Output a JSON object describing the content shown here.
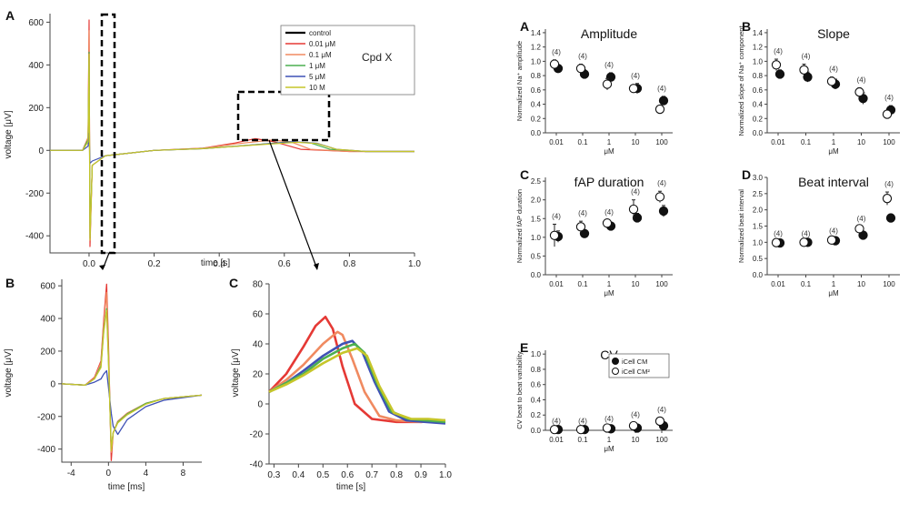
{
  "chart_data": [
    {
      "id": "traces-main",
      "panel": "A",
      "type": "line",
      "xlabel": "time [s]",
      "ylabel": "voltage [μV]",
      "xlim": [
        -0.12,
        1.0
      ],
      "ylim": [
        -480,
        640
      ],
      "xticks": [
        "0.0",
        "0.2",
        "0.4",
        "0.6",
        "0.8",
        "1.0"
      ],
      "yticks": [
        "600",
        "400",
        "200",
        "0",
        "-200",
        "-400"
      ],
      "legend": {
        "placement": "top-right",
        "annotation": "Cpd X",
        "entries": [
          {
            "name": "control",
            "color": "#000000"
          },
          {
            "name": "0.01 μM",
            "color": "#e53935"
          },
          {
            "name": "0.1 μM",
            "color": "#f08a60"
          },
          {
            "name": "1 μM",
            "color": "#4caf50"
          },
          {
            "name": "5 μM",
            "color": "#3f51b5"
          },
          {
            "name": "10 M",
            "color": "#c6c62a"
          }
        ]
      },
      "series": [
        {
          "name": "0.01 μM",
          "color": "#e53935",
          "x": [
            -0.12,
            -0.02,
            -0.003,
            0.0,
            0.003,
            0.01,
            0.05,
            0.2,
            0.35,
            0.45,
            0.51,
            0.57,
            0.65,
            0.8,
            1.0
          ],
          "y": [
            0,
            0,
            60,
            610,
            -450,
            -70,
            -25,
            0,
            10,
            35,
            55,
            40,
            5,
            -5,
            -5
          ]
        },
        {
          "name": "0.1 μM",
          "color": "#f08a60",
          "x": [
            -0.12,
            -0.02,
            -0.003,
            0.0,
            0.003,
            0.01,
            0.05,
            0.2,
            0.35,
            0.45,
            0.56,
            0.62,
            0.68,
            0.8,
            1.0
          ],
          "y": [
            0,
            0,
            60,
            560,
            -420,
            -70,
            -25,
            0,
            10,
            30,
            48,
            40,
            5,
            -5,
            -5
          ]
        },
        {
          "name": "1 μM",
          "color": "#4caf50",
          "x": [
            -0.12,
            -0.02,
            -0.003,
            0.0,
            0.003,
            0.01,
            0.05,
            0.2,
            0.35,
            0.5,
            0.62,
            0.68,
            0.74,
            0.85,
            1.0
          ],
          "y": [
            0,
            0,
            50,
            460,
            -410,
            -70,
            -25,
            0,
            8,
            25,
            40,
            35,
            5,
            -5,
            -5
          ]
        },
        {
          "name": "5 μM",
          "color": "#3f51b5",
          "x": [
            -0.12,
            -0.02,
            -0.003,
            0.0,
            0.003,
            0.01,
            0.05,
            0.2,
            0.35,
            0.5,
            0.63,
            0.7,
            0.76,
            0.85,
            1.0
          ],
          "y": [
            0,
            0,
            20,
            80,
            -60,
            -50,
            -25,
            0,
            8,
            25,
            40,
            33,
            5,
            -5,
            -5
          ]
        },
        {
          "name": "10 M",
          "color": "#c6c62a",
          "x": [
            -0.12,
            -0.02,
            -0.003,
            0.0,
            0.003,
            0.01,
            0.05,
            0.2,
            0.35,
            0.5,
            0.64,
            0.7,
            0.76,
            0.85,
            1.0
          ],
          "y": [
            0,
            0,
            40,
            450,
            -420,
            -70,
            -25,
            0,
            8,
            24,
            38,
            32,
            5,
            -5,
            -5
          ]
        }
      ]
    },
    {
      "id": "traces-zoom-spike",
      "panel": "B",
      "type": "line",
      "xlabel": "time [ms]",
      "ylabel": "voltage [μV]",
      "xlim": [
        -5,
        10
      ],
      "ylim": [
        -480,
        640
      ],
      "xticks": [
        "-4",
        "0",
        "4",
        "8"
      ],
      "yticks": [
        "600",
        "400",
        "200",
        "0",
        "-200",
        "-400"
      ],
      "series": [
        {
          "name": "0.01 μM",
          "color": "#e53935",
          "x": [
            -5,
            -2.5,
            -1.5,
            -0.8,
            -0.5,
            -0.2,
            0.0,
            0.3,
            0.5,
            1.0,
            2.0,
            4.0,
            6.0,
            10.0
          ],
          "y": [
            0,
            -8,
            40,
            140,
            400,
            610,
            250,
            -470,
            -300,
            -230,
            -180,
            -120,
            -90,
            -70
          ]
        },
        {
          "name": "0.1 μM",
          "color": "#f08a60",
          "x": [
            -5,
            -2.5,
            -1.5,
            -0.8,
            -0.5,
            -0.2,
            0.0,
            0.3,
            0.5,
            1.0,
            2.0,
            4.0,
            6.0,
            10.0
          ],
          "y": [
            0,
            -8,
            35,
            130,
            380,
            560,
            200,
            -420,
            -300,
            -230,
            -180,
            -120,
            -90,
            -70
          ]
        },
        {
          "name": "1 μM",
          "color": "#4caf50",
          "x": [
            -5,
            -2.5,
            -1.5,
            -0.8,
            -0.5,
            -0.2,
            0.0,
            0.3,
            0.5,
            1.0,
            2.0,
            4.0,
            6.0,
            10.0
          ],
          "y": [
            0,
            -8,
            30,
            110,
            330,
            460,
            150,
            -400,
            -300,
            -235,
            -185,
            -120,
            -90,
            -70
          ]
        },
        {
          "name": "5 μM",
          "color": "#3f51b5",
          "x": [
            -5,
            -2.5,
            -1.5,
            -0.8,
            -0.5,
            -0.2,
            0.0,
            0.3,
            0.5,
            1.0,
            2.0,
            4.0,
            6.0,
            10.0
          ],
          "y": [
            0,
            -8,
            10,
            30,
            60,
            80,
            -20,
            -180,
            -260,
            -310,
            -220,
            -140,
            -100,
            -70
          ]
        },
        {
          "name": "10 M",
          "color": "#c6c62a",
          "x": [
            -5,
            -2.5,
            -1.5,
            -0.8,
            -0.5,
            -0.2,
            0.0,
            0.3,
            0.5,
            1.0,
            2.0,
            4.0,
            6.0,
            10.0
          ],
          "y": [
            0,
            -8,
            30,
            100,
            320,
            450,
            140,
            -410,
            -300,
            -240,
            -190,
            -125,
            -90,
            -70
          ]
        }
      ]
    },
    {
      "id": "traces-zoom-wave",
      "panel": "C",
      "type": "line",
      "xlabel": "time [s]",
      "ylabel": "voltage [μV]",
      "xlim": [
        0.28,
        1.0
      ],
      "ylim": [
        -40,
        80
      ],
      "xticks": [
        "0.3",
        "0.4",
        "0.5",
        "0.6",
        "0.7",
        "0.8",
        "0.9",
        "1.0"
      ],
      "yticks": [
        "80",
        "60",
        "40",
        "20",
        "0",
        "-20",
        "-40"
      ],
      "series": [
        {
          "name": "0.01 μM",
          "color": "#e53935",
          "x": [
            0.28,
            0.35,
            0.42,
            0.47,
            0.51,
            0.54,
            0.58,
            0.63,
            0.7,
            0.8,
            0.9,
            1.0
          ],
          "y": [
            8,
            20,
            38,
            52,
            58,
            50,
            25,
            0,
            -10,
            -12,
            -12,
            -11
          ]
        },
        {
          "name": "0.1 μM",
          "color": "#f08a60",
          "x": [
            0.28,
            0.35,
            0.42,
            0.5,
            0.56,
            0.58,
            0.62,
            0.67,
            0.73,
            0.8,
            0.9,
            1.0
          ],
          "y": [
            8,
            16,
            26,
            40,
            48,
            46,
            30,
            8,
            -8,
            -11,
            -12,
            -11
          ]
        },
        {
          "name": "5 μM",
          "color": "#3f51b5",
          "x": [
            0.28,
            0.35,
            0.42,
            0.5,
            0.58,
            0.62,
            0.66,
            0.71,
            0.77,
            0.84,
            0.92,
            1.0
          ],
          "y": [
            8,
            14,
            22,
            32,
            40,
            42,
            35,
            15,
            -5,
            -11,
            -12,
            -13
          ]
        },
        {
          "name": "1 μM",
          "color": "#4caf50",
          "x": [
            0.28,
            0.35,
            0.42,
            0.5,
            0.58,
            0.63,
            0.67,
            0.72,
            0.78,
            0.85,
            0.92,
            1.0
          ],
          "y": [
            8,
            14,
            20,
            30,
            37,
            40,
            34,
            14,
            -5,
            -10,
            -11,
            -12
          ]
        },
        {
          "name": "10 M",
          "color": "#c6c62a",
          "x": [
            0.28,
            0.35,
            0.42,
            0.5,
            0.58,
            0.64,
            0.68,
            0.73,
            0.79,
            0.86,
            0.93,
            1.0
          ],
          "y": [
            8,
            13,
            19,
            27,
            34,
            37,
            32,
            12,
            -6,
            -10,
            -10,
            -11
          ]
        }
      ]
    },
    {
      "id": "dose-amplitude",
      "panel": "A",
      "type": "scatter",
      "title": "Amplitude",
      "xlabel": "μM",
      "ylabel": "Normalized Na⁺ amplitude",
      "x_scale": "log",
      "categories": [
        "0.01",
        "0.1",
        "1",
        "10",
        "100"
      ],
      "ylim": [
        0,
        1.45
      ],
      "yticks": [
        "0.0",
        "0.2",
        "0.4",
        "0.6",
        "0.8",
        "1.0",
        "1.2",
        "1.4"
      ],
      "n_labels": [
        "(4)",
        "(4)",
        "(4)",
        "(4)",
        "(4)"
      ],
      "series": [
        {
          "name": "iCell CM",
          "marker": "filled",
          "values": [
            0.9,
            0.82,
            0.78,
            0.62,
            0.45
          ],
          "err": [
            0.05,
            0.06,
            0.06,
            0.07,
            0.06
          ]
        },
        {
          "name": "iCell CM²",
          "marker": "open",
          "values": [
            0.96,
            0.9,
            0.68,
            0.62,
            0.33
          ],
          "err": [
            0.06,
            0.06,
            0.08,
            0.05,
            0.05
          ]
        }
      ]
    },
    {
      "id": "dose-slope",
      "panel": "B",
      "type": "scatter",
      "title": "Slope",
      "xlabel": "μM",
      "ylabel": "Normalized slope of Na⁺ component",
      "x_scale": "log",
      "categories": [
        "0.01",
        "0.1",
        "1",
        "10",
        "100"
      ],
      "ylim": [
        0,
        1.45
      ],
      "yticks": [
        "0.0",
        "0.2",
        "0.4",
        "0.6",
        "0.8",
        "1.0",
        "1.2",
        "1.4"
      ],
      "n_labels": [
        "(4)",
        "(4)",
        "(4)",
        "(4)",
        "(4)"
      ],
      "series": [
        {
          "name": "iCell CM",
          "marker": "filled",
          "values": [
            0.82,
            0.78,
            0.68,
            0.48,
            0.32
          ],
          "err": [
            0.06,
            0.07,
            0.07,
            0.08,
            0.06
          ]
        },
        {
          "name": "iCell CM²",
          "marker": "open",
          "values": [
            0.95,
            0.88,
            0.72,
            0.57,
            0.26
          ],
          "err": [
            0.08,
            0.08,
            0.06,
            0.06,
            0.04
          ]
        }
      ]
    },
    {
      "id": "dose-fap",
      "panel": "C",
      "type": "scatter",
      "title": "fAP duration",
      "xlabel": "μM",
      "ylabel": "Normalized fAP duration",
      "x_scale": "log",
      "categories": [
        "0.01",
        "0.1",
        "1",
        "10",
        "100"
      ],
      "ylim": [
        0,
        2.6
      ],
      "yticks": [
        "0.0",
        "0.5",
        "1.0",
        "1.5",
        "2.0",
        "2.5"
      ],
      "n_labels": [
        "(4)",
        "(4)",
        "(4)",
        "(4)",
        "(4)"
      ],
      "series": [
        {
          "name": "iCell CM",
          "marker": "filled",
          "values": [
            1.02,
            1.1,
            1.3,
            1.52,
            1.7
          ],
          "err": [
            0.15,
            0.08,
            0.06,
            0.12,
            0.15
          ]
        },
        {
          "name": "iCell CM²",
          "marker": "open",
          "values": [
            1.05,
            1.28,
            1.38,
            1.75,
            2.08
          ],
          "err": [
            0.3,
            0.15,
            0.08,
            0.25,
            0.15
          ]
        }
      ]
    },
    {
      "id": "dose-beat",
      "panel": "D",
      "type": "scatter",
      "title": "Beat interval",
      "xlabel": "μM",
      "ylabel": "Normalized beat interval",
      "x_scale": "log",
      "categories": [
        "0.01",
        "0.1",
        "1",
        "10",
        "100"
      ],
      "ylim": [
        0,
        3.0
      ],
      "yticks": [
        "0.0",
        "0.5",
        "1.0",
        "1.5",
        "2.0",
        "2.5",
        "3.0"
      ],
      "n_labels": [
        "(4)",
        "(4)",
        "(4)",
        "(4)",
        "(4)"
      ],
      "series": [
        {
          "name": "iCell CM",
          "marker": "filled",
          "values": [
            0.98,
            1.0,
            1.05,
            1.22,
            1.75
          ],
          "err": [
            0.02,
            0.02,
            0.03,
            0.05,
            0.05
          ]
        },
        {
          "name": "iCell CM²",
          "marker": "open",
          "values": [
            0.99,
            1.0,
            1.07,
            1.42,
            2.35
          ],
          "err": [
            0.03,
            0.03,
            0.04,
            0.06,
            0.2
          ]
        }
      ]
    },
    {
      "id": "dose-cv",
      "panel": "E",
      "type": "scatter",
      "title": "CV",
      "xlabel": "μM",
      "ylabel": "CV beat to beat variability",
      "x_scale": "log",
      "categories": [
        "0.01",
        "0.1",
        "1",
        "10",
        "100"
      ],
      "ylim": [
        0,
        1.05
      ],
      "yticks": [
        "0.0",
        "0.2",
        "0.4",
        "0.6",
        "0.8",
        "1.0"
      ],
      "n_labels": [
        "(4)",
        "(4)",
        "(4)",
        "(4)",
        "(4)"
      ],
      "legend": {
        "placement": "top-right",
        "entries": [
          "iCell CM",
          "iCell CM²"
        ]
      },
      "series": [
        {
          "name": "iCell CM",
          "marker": "filled",
          "values": [
            0.01,
            0.01,
            0.02,
            0.03,
            0.06
          ],
          "err": [
            0.01,
            0.01,
            0.01,
            0.02,
            0.03
          ]
        },
        {
          "name": "iCell CM²",
          "marker": "open",
          "values": [
            0.01,
            0.01,
            0.03,
            0.06,
            0.12
          ],
          "err": [
            0.01,
            0.01,
            0.02,
            0.04,
            0.05
          ]
        }
      ]
    }
  ]
}
